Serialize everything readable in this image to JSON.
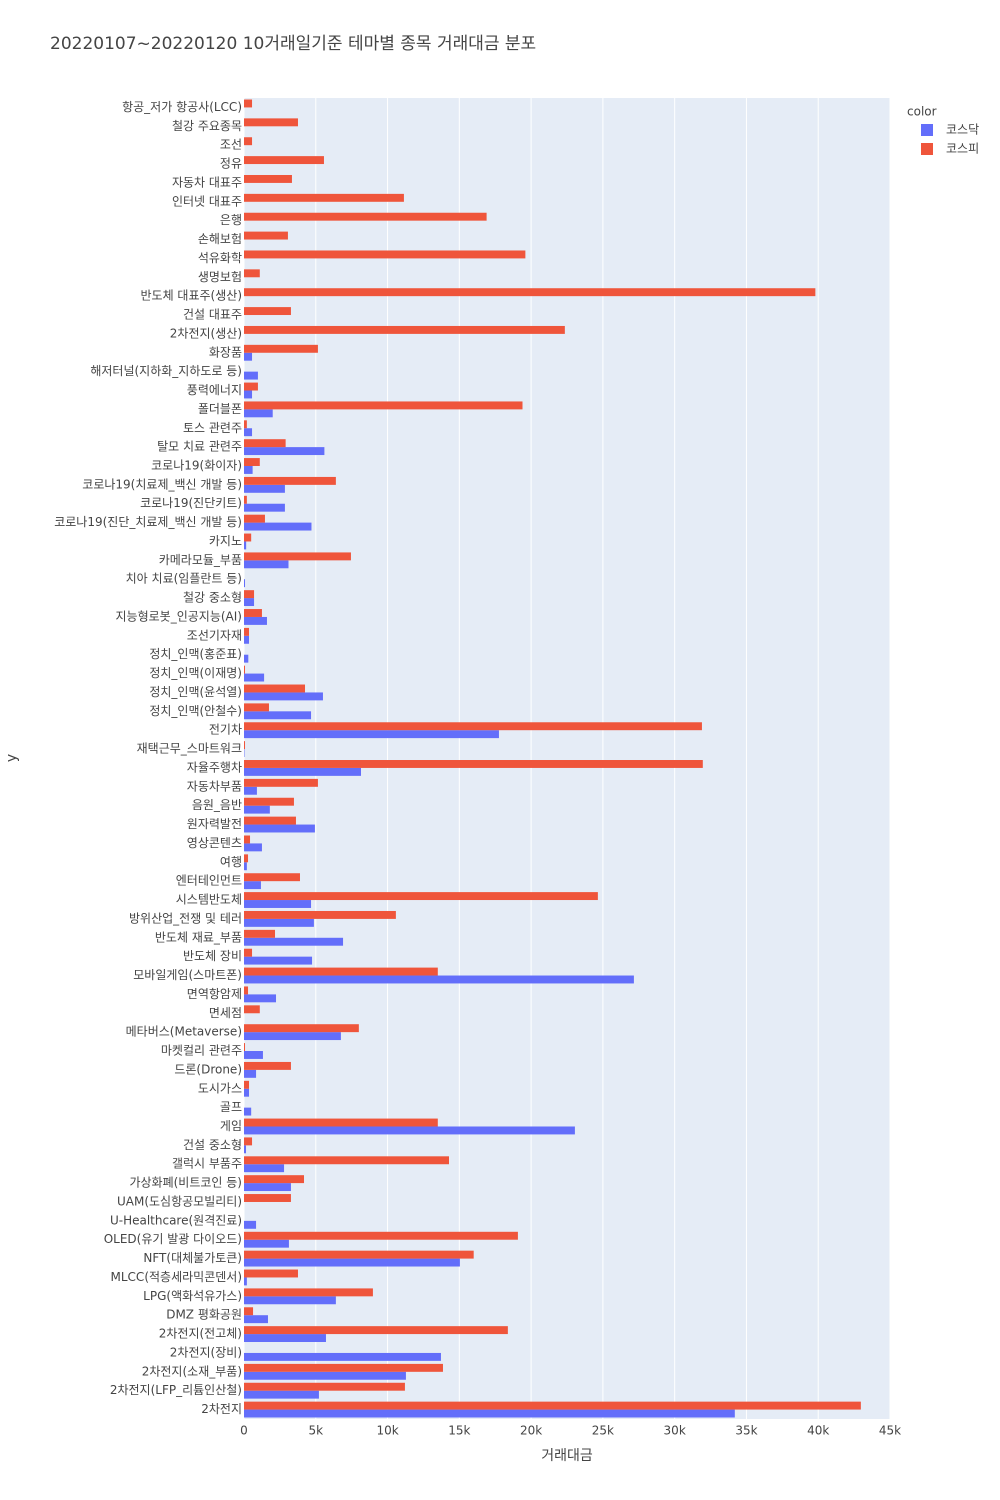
{
  "chart_data": {
    "type": "bar",
    "orientation": "horizontal",
    "title": "20220107~20220120 10거래일기준 테마별 종목 거래대금 분포",
    "xlabel": "거래대금",
    "ylabel": "y",
    "legend_title": "color",
    "legend_position": "top-right-outside",
    "grid": true,
    "categories": [
      "항공_저가 항공사(LCC)",
      "철강 주요종목",
      "조선",
      "정유",
      "자동차 대표주",
      "인터넷 대표주",
      "은행",
      "손해보험",
      "석유화학",
      "생명보험",
      "반도체 대표주(생산)",
      "건설 대표주",
      "2차전지(생산)",
      "화장품",
      "해저터널(지하화_지하도로 등)",
      "풍력에너지",
      "폴더블폰",
      "토스 관련주",
      "탈모 치료 관련주",
      "코로나19(화이자)",
      "코로나19(치료제_백신 개발 등)",
      "코로나19(진단키트)",
      "코로나19(진단_치료제_백신 개발 등)",
      "카지노",
      "카메라모듈_부품",
      "치아 치료(임플란트 등)",
      "철강 중소형",
      "지능형로봇_인공지능(AI)",
      "조선기자재",
      "정치_인맥(홍준표)",
      "정치_인맥(이재명)",
      "정치_인맥(윤석열)",
      "정치_인맥(안철수)",
      "전기차",
      "재택근무_스마트워크",
      "자율주행차",
      "자동차부품",
      "음원_음반",
      "원자력발전",
      "영상콘텐츠",
      "여행",
      "엔터테인먼트",
      "시스템반도체",
      "방위산업_전쟁 및 테러",
      "반도체 재료_부품",
      "반도체 장비",
      "모바일게임(스마트폰)",
      "면역항암제",
      "면세점",
      "메타버스(Metaverse)",
      "마켓컬리 관련주",
      "드론(Drone)",
      "도시가스",
      "골프",
      "게임",
      "건설 중소형",
      "갤럭시 부품주",
      "가상화폐(비트코인 등)",
      "UAM(도심항공모빌리티)",
      "U-Healthcare(원격진료)",
      "OLED(유기 발광 다이오드)",
      "NFT(대체불가토큰)",
      "MLCC(적층세라믹콘덴서)",
      "LPG(액화석유가스)",
      "DMZ 평화공원",
      "2차전지(전고체)",
      "2차전지(장비)",
      "2차전지(소재_부품)",
      "2차전지(LFP_리튬인산철)",
      "2차전지"
    ],
    "series": [
      {
        "name": "코스닥",
        "color": "#636efa",
        "values": [
          null,
          null,
          null,
          null,
          null,
          null,
          null,
          null,
          null,
          null,
          null,
          null,
          null,
          560,
          970,
          560,
          2000,
          560,
          5600,
          600,
          2850,
          2850,
          4700,
          150,
          3100,
          70,
          700,
          1600,
          350,
          300,
          1400,
          5500,
          4670,
          17760,
          30,
          8150,
          900,
          1800,
          4940,
          1250,
          200,
          1180,
          4670,
          4870,
          6900,
          4740,
          27160,
          2230,
          null,
          6750,
          1320,
          840,
          350,
          500,
          23050,
          140,
          2790,
          3270,
          null,
          840,
          3130,
          15040,
          200,
          6400,
          1670,
          5710,
          13720,
          11280,
          5220,
          34190
        ]
      },
      {
        "name": "코스피",
        "color": "#ef553b",
        "values": [
          560,
          3760,
          560,
          5570,
          3340,
          11140,
          16900,
          3060,
          19600,
          1100,
          39800,
          3270,
          22350,
          5150,
          null,
          970,
          19400,
          200,
          2900,
          1100,
          6400,
          200,
          1460,
          500,
          7450,
          null,
          700,
          1250,
          350,
          null,
          70,
          4250,
          1740,
          31900,
          70,
          31960,
          5150,
          3480,
          3620,
          420,
          280,
          3900,
          24650,
          10580,
          2160,
          560,
          13500,
          280,
          1100,
          8000,
          70,
          3270,
          350,
          null,
          13500,
          560,
          14280,
          4180,
          3270,
          null,
          19080,
          16000,
          3760,
          8980,
          630,
          18380,
          null,
          13860,
          11210,
          42970
        ]
      }
    ],
    "xlim": [
      0,
      45000
    ],
    "xticks": [
      0,
      {
        "value": 5000,
        "label": "5k"
      },
      {
        "value": 10000,
        "label": "10k"
      },
      {
        "value": 15000,
        "label": "15k"
      },
      {
        "value": 20000,
        "label": "20k"
      },
      {
        "value": 25000,
        "label": "25k"
      },
      {
        "value": 30000,
        "label": "30k"
      },
      {
        "value": 35000,
        "label": "35k"
      },
      {
        "value": 40000,
        "label": "40k"
      },
      {
        "value": 45000,
        "label": "45k"
      }
    ]
  }
}
